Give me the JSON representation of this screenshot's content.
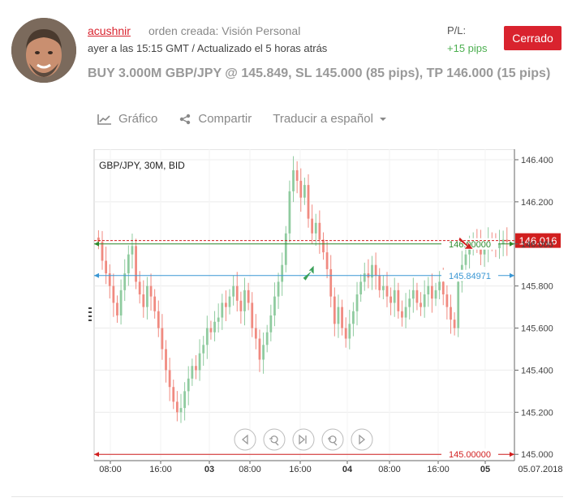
{
  "post": {
    "username": "acushnir",
    "order_type": "orden creada: Visión Personal",
    "time_line": "ayer a las 15:15 GMT / Actualizado el 5 horas atrás",
    "pl_label": "P/L:",
    "pl_value": "+15 pips",
    "status": "Cerrado",
    "trade_summary": "BUY 3.000M GBP/JPY @ 145.849, SL 145.000 (85 pips), TP 146.000 (15 pips)"
  },
  "actions": {
    "chart": "Gráfico",
    "share": "Compartir",
    "translate": "Traducir a español"
  },
  "icons": {
    "chart": "line-chart-icon",
    "share": "share-icon",
    "translate_caret": "chevron-down-icon"
  },
  "colors": {
    "accent": "#d9232e",
    "profit": "#4caf50",
    "bull_candle": "#8fcb9f",
    "bear_candle": "#f08a80",
    "tp_line": "#2e8b2e",
    "entry_line": "#3a97d4",
    "sl_line": "#d11f1f"
  },
  "chart_data": {
    "type": "candlestick",
    "instrument_label": "GBP/JPY, 30M, BID",
    "y_ticks": [
      "146.400",
      "146.200",
      "146.000",
      "145.800",
      "145.600",
      "145.400",
      "145.200",
      "145.000"
    ],
    "y_tick_values": [
      146.4,
      146.2,
      146.0,
      145.8,
      145.6,
      145.4,
      145.2,
      145.0
    ],
    "ylim": [
      144.97,
      146.45
    ],
    "x_ticks": [
      "08:00",
      "16:00",
      "03",
      "08:00",
      "16:00",
      "04",
      "08:00",
      "16:00",
      "05",
      "05.07.2018"
    ],
    "levels": [
      {
        "label": "146.00000",
        "value": 146.0,
        "kind": "take-profit"
      },
      {
        "label": "145.84971",
        "value": 145.84971,
        "kind": "entry"
      },
      {
        "label": "145.00000",
        "value": 145.0,
        "kind": "stop-loss"
      }
    ],
    "current_price": {
      "label": "146.016",
      "value": 146.016
    },
    "closes": [
      146.01,
      145.92,
      145.86,
      145.8,
      145.72,
      145.66,
      145.78,
      145.86,
      145.95,
      145.99,
      145.82,
      145.76,
      145.7,
      145.8,
      145.75,
      145.68,
      145.6,
      145.5,
      145.4,
      145.32,
      145.25,
      145.2,
      145.22,
      145.3,
      145.36,
      145.42,
      145.4,
      145.48,
      145.52,
      145.6,
      145.58,
      145.63,
      145.65,
      145.72,
      145.7,
      145.75,
      145.8,
      145.73,
      145.68,
      145.78,
      145.72,
      145.6,
      145.55,
      145.45,
      145.52,
      145.58,
      145.66,
      145.75,
      145.82,
      145.9,
      146.05,
      146.25,
      146.35,
      146.3,
      146.22,
      146.28,
      146.12,
      146.05,
      146.1,
      146.02,
      145.96,
      145.88,
      145.75,
      145.62,
      145.7,
      145.6,
      145.55,
      145.62,
      145.68,
      145.76,
      145.82,
      145.86,
      145.84,
      145.9,
      145.85,
      145.78,
      145.8,
      145.75,
      145.72,
      145.78,
      145.68,
      145.65,
      145.7,
      145.74,
      145.78,
      145.72,
      145.7,
      145.76,
      145.8,
      145.74,
      145.78,
      145.82,
      145.76,
      145.7,
      145.64,
      145.6,
      145.82,
      145.9,
      145.95,
      145.98,
      146.02,
      146.0,
      145.95,
      145.98,
      146.02,
      146.0,
      145.98,
      146.0,
      146.02,
      146.01
    ]
  },
  "chart_nav": [
    "scroll-left",
    "zoom-out",
    "reset-view",
    "zoom-in",
    "scroll-right"
  ]
}
